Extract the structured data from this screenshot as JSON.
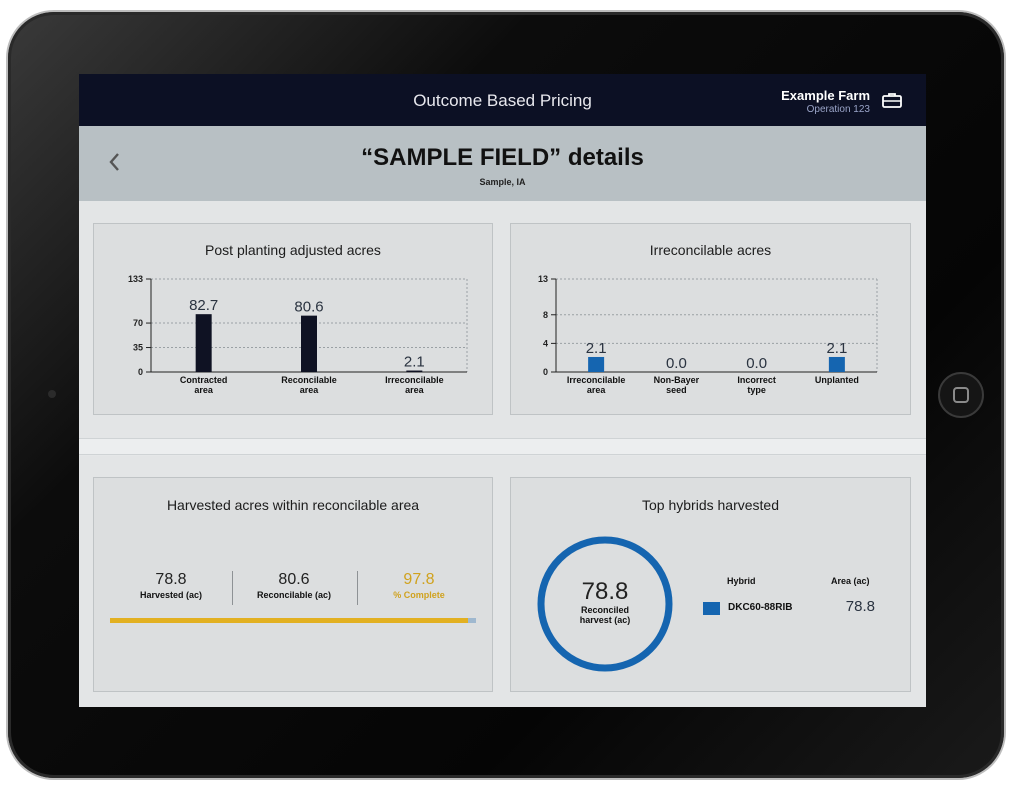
{
  "app": {
    "title": "Outcome Based Pricing",
    "farm_name": "Example Farm",
    "operation": "Operation 123",
    "briefcase_icon": "briefcase-icon",
    "back_icon": "chevron-left-icon"
  },
  "header": {
    "title": "“SAMPLE FIELD” details",
    "subtitle": "Sample, IA"
  },
  "colors": {
    "navy_bar": "#0c1024",
    "dark_bar": "#0f1223",
    "blue_bar": "#1565b0",
    "gold": "#e2b021"
  },
  "cards": {
    "post_planting": {
      "title": "Post planting adjusted acres",
      "chart_data": {
        "type": "bar",
        "title": "Post planting adjusted acres",
        "categories": [
          [
            "Contracted",
            "area"
          ],
          [
            "Reconcilable",
            "area"
          ],
          [
            "Irreconcilable",
            "area"
          ]
        ],
        "values": [
          82.7,
          80.6,
          2.1
        ],
        "data_labels": [
          "82.7",
          "80.6",
          "2.1"
        ],
        "yticks": [
          0,
          35,
          70,
          133
        ],
        "ylim": [
          0,
          133
        ],
        "grid": true,
        "bar_color": "#0f1223"
      }
    },
    "irreconcilable": {
      "title": "Irreconcilable acres",
      "chart_data": {
        "type": "bar",
        "title": "Irreconcilable acres",
        "categories": [
          [
            "Irreconcilable",
            "area"
          ],
          [
            "Non-Bayer",
            "seed"
          ],
          [
            "Incorrect",
            "type"
          ],
          [
            "Unplanted"
          ]
        ],
        "values": [
          2.1,
          0.0,
          0.0,
          2.1
        ],
        "data_labels": [
          "2.1",
          "0.0",
          "0.0",
          "2.1"
        ],
        "yticks": [
          0,
          4,
          8,
          13
        ],
        "ylim": [
          0,
          13
        ],
        "grid": true,
        "bar_color": "#1565b0"
      }
    },
    "harvested": {
      "title": "Harvested acres within reconcilable area",
      "harvested_value": "78.8",
      "harvested_label": "Harvested (ac)",
      "reconcilable_value": "80.6",
      "reconcilable_label": "Reconcilable (ac)",
      "complete_value": "97.8",
      "complete_label": "% Complete",
      "progress_percent": 97.8
    },
    "top_hybrids": {
      "title": "Top hybrids harvested",
      "donut_value": "78.8",
      "donut_label_line1": "Reconciled",
      "donut_label_line2": "harvest (ac)",
      "donut_fraction": 1.0,
      "col_hybrid": "Hybrid",
      "col_area": "Area (ac)",
      "hybrids": [
        {
          "name": "DKC60-88RIB",
          "area": "78.8",
          "color": "#1565b0"
        }
      ]
    }
  }
}
